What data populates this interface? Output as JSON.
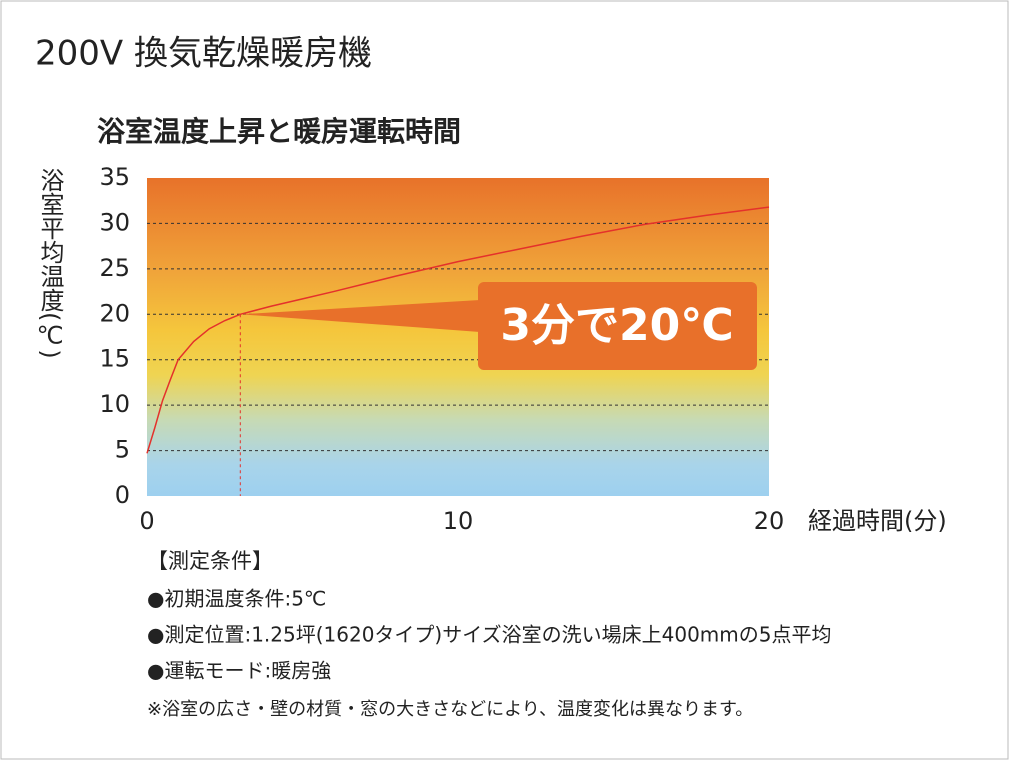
{
  "chart_data": {
    "type": "line",
    "title": "200V 換気乾燥暖房機",
    "subtitle": "浴室温度上昇と暖房運転時間",
    "y_label": "浴室平均温度(℃)",
    "x_label": "経過時間(分)",
    "x": [
      0,
      0.25,
      0.5,
      0.75,
      1,
      1.5,
      2,
      2.5,
      3,
      4,
      5,
      6,
      8,
      10,
      12,
      14,
      16,
      18,
      20
    ],
    "series": [
      {
        "color": "#e4312b",
        "values": [
          4.7,
          7.5,
          10.5,
          12.8,
          15,
          17,
          18.4,
          19.3,
          20,
          20.9,
          21.7,
          22.5,
          24.2,
          25.8,
          27.2,
          28.6,
          29.9,
          30.9,
          31.8
        ]
      }
    ],
    "xlim": [
      0,
      20
    ],
    "xticks": [
      0,
      10,
      20
    ],
    "ylim": [
      0,
      35
    ],
    "yticks": [
      0,
      5,
      10,
      15,
      20,
      25,
      30,
      35
    ],
    "grid": true,
    "annotation": {
      "text": "3分で20℃",
      "x": 3,
      "y": 20,
      "color": "#e8702a"
    },
    "conditions_title": "【測定条件】",
    "conditions": [
      "●初期温度条件:5℃",
      "●測定位置:1.25坪(1620タイプ)サイズ浴室の洗い場床上400mmの5点平均",
      "●運転モード:暖房強"
    ],
    "footnote": "※浴室の広さ・壁の材質・窓の大きさなどにより、温度変化は異なります。"
  }
}
